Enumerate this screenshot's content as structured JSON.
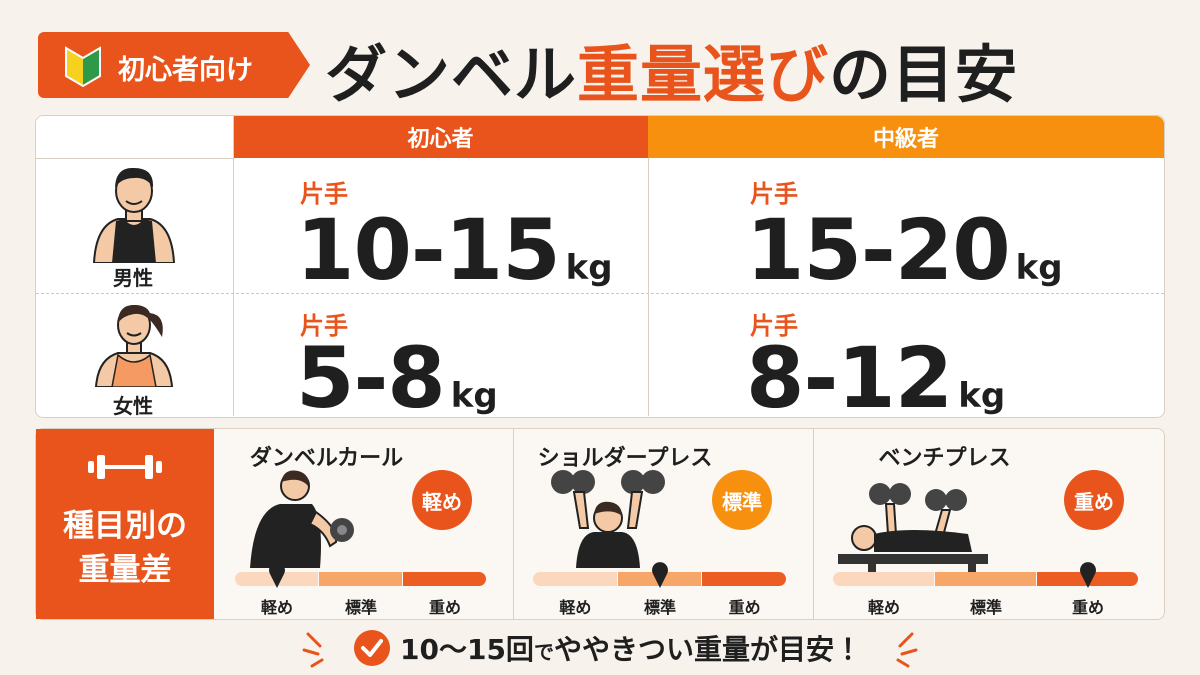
{
  "header": {
    "badge": "初心者向け",
    "title_parts": [
      "ダンベル",
      "重量選び",
      "の目安"
    ]
  },
  "table": {
    "columns": [
      "初心者",
      "中級者"
    ],
    "rows": [
      {
        "label": "男性",
        "cells": [
          {
            "hand": "片手",
            "range": "10-15",
            "unit": "kg"
          },
          {
            "hand": "片手",
            "range": "15-20",
            "unit": "kg"
          }
        ]
      },
      {
        "label": "女性",
        "cells": [
          {
            "hand": "片手",
            "range": "5-8",
            "unit": "kg"
          },
          {
            "hand": "片手",
            "range": "8-12",
            "unit": "kg"
          }
        ]
      }
    ]
  },
  "exercises": {
    "heading": [
      "種目別の",
      "重量差"
    ],
    "scale": [
      "軽め",
      "標準",
      "重め"
    ],
    "items": [
      {
        "name": "ダンベルカール",
        "badge": "軽め"
      },
      {
        "name": "ショルダープレス",
        "badge": "標準"
      },
      {
        "name": "ベンチプレス",
        "badge": "重め"
      }
    ]
  },
  "footer": {
    "parts": [
      "10〜15回",
      "で",
      "ややきつい重量が目安！"
    ]
  }
}
